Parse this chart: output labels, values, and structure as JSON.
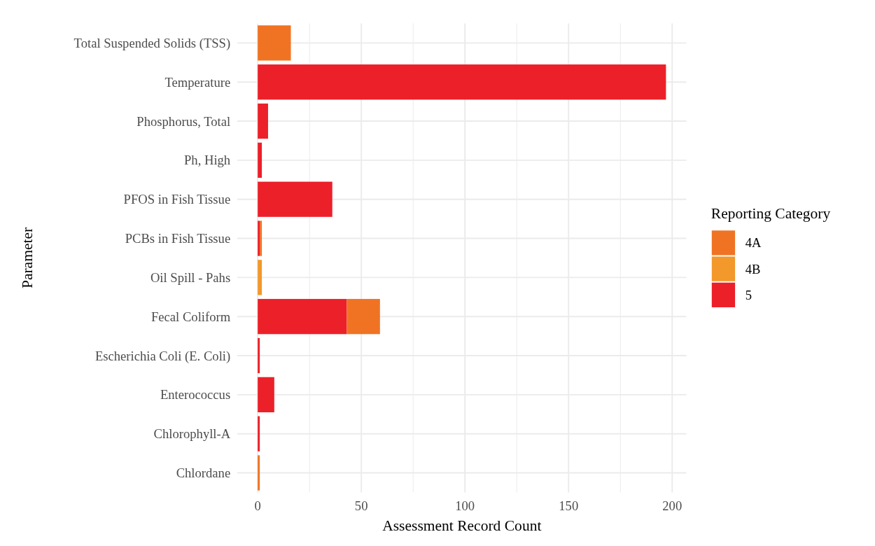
{
  "chart_data": {
    "type": "bar",
    "orientation": "horizontal",
    "stacked": true,
    "xlabel": "Assessment Record Count",
    "ylabel": "Parameter",
    "legend_title": "Reporting Category",
    "legend": "right",
    "grid": true,
    "categories": [
      "Total Suspended Solids (TSS)",
      "Temperature",
      "Phosphorus, Total",
      "Ph, High",
      "PFOS in Fish Tissue",
      "PCBs in Fish Tissue",
      "Oil Spill - Pahs",
      "Fecal Coliform",
      "Escherichia Coli (E. Coli)",
      "Enterococcus",
      "Chlorophyll-A",
      "Chlordane"
    ],
    "series": [
      {
        "name": "5",
        "color": "#ec2029",
        "values": [
          null,
          197,
          5,
          2,
          36,
          1,
          null,
          43,
          1,
          8,
          1,
          null
        ]
      },
      {
        "name": "4A",
        "color": "#f07323",
        "values": [
          16,
          null,
          null,
          null,
          null,
          1,
          null,
          16,
          null,
          null,
          null,
          1
        ]
      },
      {
        "name": "4B",
        "color": "#f3982a",
        "values": [
          null,
          null,
          null,
          null,
          null,
          null,
          2,
          null,
          null,
          null,
          null,
          null
        ]
      }
    ],
    "xlim": [
      -9.85,
      206.85
    ],
    "xticks": [
      0,
      {
        "value": 25,
        "label": null
      },
      50,
      {
        "value": 75,
        "label": null
      },
      100,
      {
        "value": 125,
        "label": null
      },
      150,
      {
        "value": 175,
        "label": null
      },
      200
    ]
  }
}
